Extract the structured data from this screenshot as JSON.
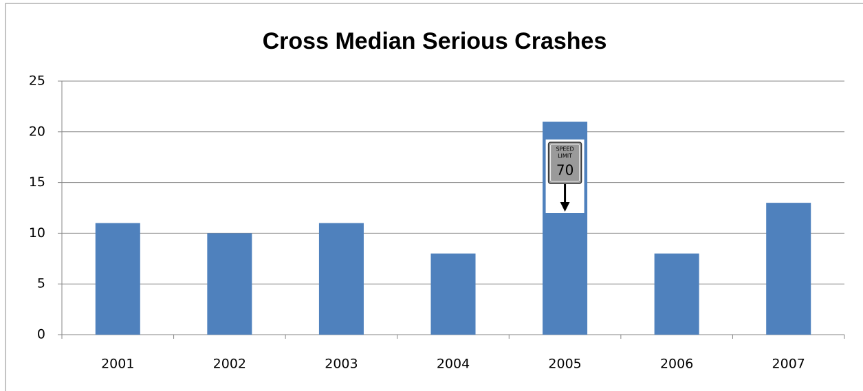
{
  "chart_data": {
    "type": "bar",
    "title": "Cross Median Serious Crashes",
    "categories": [
      "2001",
      "2002",
      "2003",
      "2004",
      "2005",
      "2006",
      "2007"
    ],
    "values": [
      11,
      10,
      11,
      8,
      21,
      8,
      13
    ],
    "color": "#4f81bd",
    "ylim": [
      0,
      25
    ],
    "yticks": [
      0,
      5,
      10,
      15,
      20,
      25
    ],
    "grid": true,
    "annotation": {
      "category_index": 4,
      "lines": [
        "SPEED",
        "LIMIT",
        "70"
      ]
    }
  }
}
